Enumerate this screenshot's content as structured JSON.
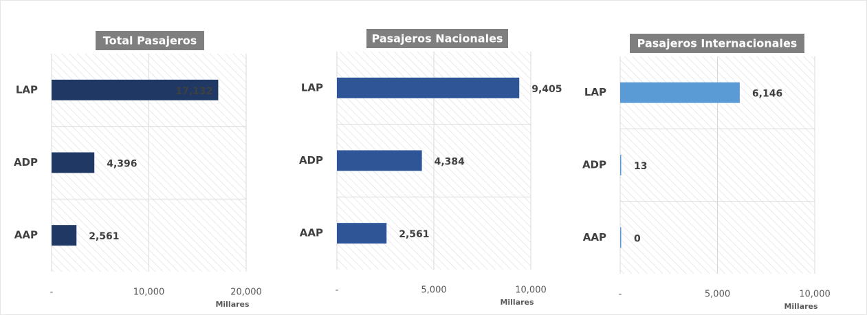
{
  "chart_data": [
    {
      "type": "bar",
      "orientation": "horizontal",
      "title": "Total Pasajeros",
      "x_label": "Millares",
      "categories": [
        "LAP",
        "ADP",
        "AAP"
      ],
      "values": [
        17132,
        4396,
        2561
      ],
      "value_labels": [
        "17,132",
        "4,396",
        "2,561"
      ],
      "color": "#1f3864",
      "xlim": [
        0,
        20000
      ],
      "xticks": [
        {
          "value": 0,
          "label": "-"
        },
        {
          "value": 10000,
          "label": "10,000"
        },
        {
          "value": 20000,
          "label": "20,000"
        }
      ],
      "grid": true
    },
    {
      "type": "bar",
      "orientation": "horizontal",
      "title": "Pasajeros Nacionales",
      "x_label": "Millares",
      "categories": [
        "LAP",
        "ADP",
        "AAP"
      ],
      "values": [
        9405,
        4384,
        2561
      ],
      "value_labels": [
        "9,405",
        "4,384",
        "2,561"
      ],
      "color": "#2f5597",
      "xlim": [
        0,
        10000
      ],
      "xticks": [
        {
          "value": 0,
          "label": "-"
        },
        {
          "value": 5000,
          "label": "5,000"
        },
        {
          "value": 10000,
          "label": "10,000"
        }
      ],
      "grid": true
    },
    {
      "type": "bar",
      "orientation": "horizontal",
      "title": "Pasajeros Internacionales",
      "x_label": "Millares",
      "categories": [
        "LAP",
        "ADP",
        "AAP"
      ],
      "values": [
        6146,
        13,
        0
      ],
      "value_labels": [
        "6,146",
        "13",
        "0"
      ],
      "color": "#5b9bd5",
      "xlim": [
        0,
        10000
      ],
      "xticks": [
        {
          "value": 0,
          "label": "-"
        },
        {
          "value": 5000,
          "label": "5,000"
        },
        {
          "value": 10000,
          "label": "10,000"
        }
      ],
      "grid": true
    }
  ]
}
